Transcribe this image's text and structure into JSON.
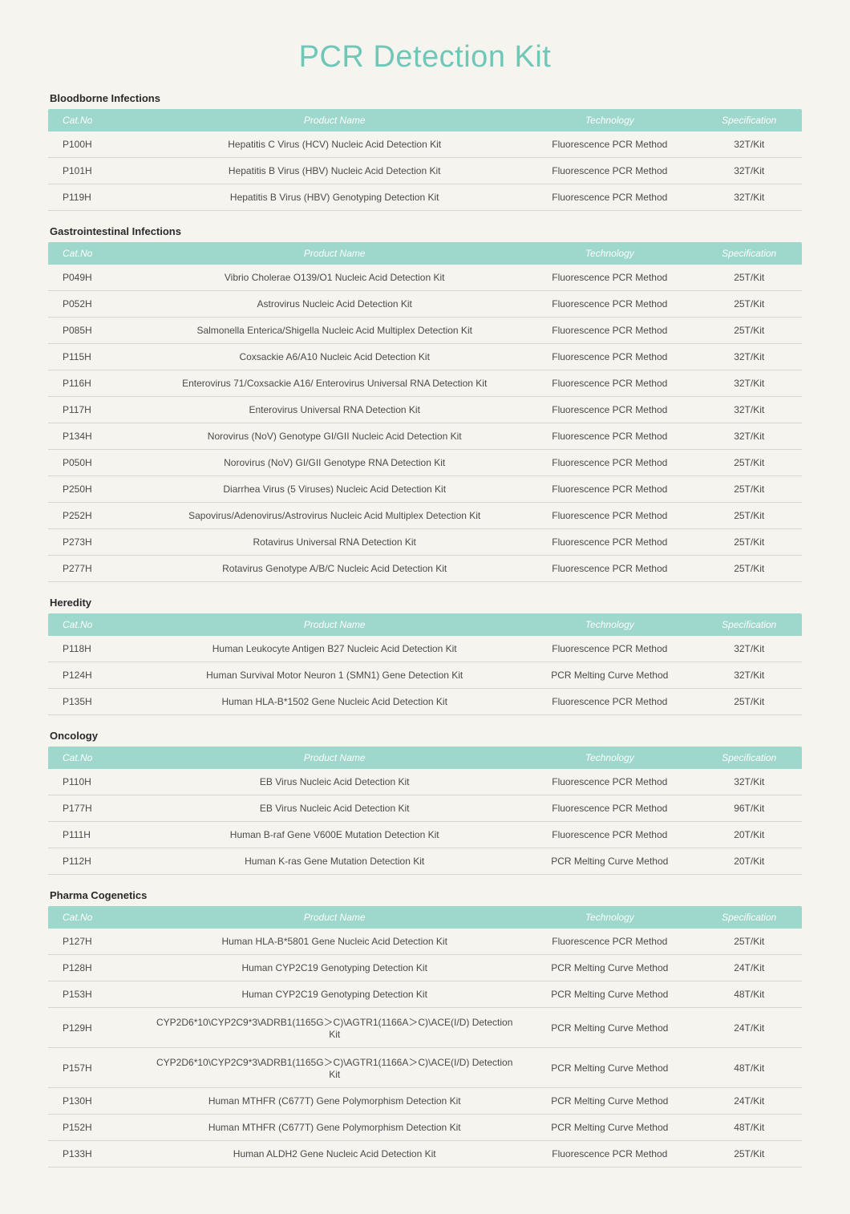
{
  "title": "PCR Detection Kit",
  "styling": {
    "title_color": "#6fc7b8",
    "title_fontsize": 38,
    "header_bg": "#9ed7cb",
    "header_text_color": "#ffffff",
    "body_bg": "#f6f4ef",
    "row_border_color": "#d9d6cf",
    "body_text_color": "#4a4a4a",
    "section_title_fontsize": 13,
    "body_fontsize": 12
  },
  "columns": [
    "Cat.No",
    "Product Name",
    "Technology",
    "Specification"
  ],
  "sections": [
    {
      "title": "Bloodborne Infections",
      "rows": [
        [
          "P100H",
          "Hepatitis C Virus (HCV) Nucleic Acid Detection Kit",
          "Fluorescence PCR Method",
          "32T/Kit"
        ],
        [
          "P101H",
          "Hepatitis B Virus (HBV) Nucleic Acid Detection Kit",
          "Fluorescence PCR Method",
          "32T/Kit"
        ],
        [
          "P119H",
          "Hepatitis B Virus (HBV) Genotyping Detection Kit",
          "Fluorescence PCR Method",
          "32T/Kit"
        ]
      ]
    },
    {
      "title": "Gastrointestinal Infections",
      "rows": [
        [
          "P049H",
          "Vibrio Cholerae O139/O1 Nucleic Acid Detection Kit",
          "Fluorescence PCR Method",
          "25T/Kit"
        ],
        [
          "P052H",
          "Astrovirus Nucleic Acid Detection Kit",
          "Fluorescence PCR Method",
          "25T/Kit"
        ],
        [
          "P085H",
          "Salmonella Enterica/Shigella Nucleic Acid Multiplex Detection Kit",
          "Fluorescence PCR Method",
          "25T/Kit"
        ],
        [
          "P115H",
          "Coxsackie A6/A10 Nucleic Acid Detection Kit",
          "Fluorescence PCR Method",
          "32T/Kit"
        ],
        [
          "P116H",
          "Enterovirus 71/Coxsackie A16/ Enterovirus Universal RNA Detection Kit",
          "Fluorescence PCR Method",
          "32T/Kit"
        ],
        [
          "P117H",
          "Enterovirus Universal RNA Detection Kit",
          "Fluorescence PCR Method",
          "32T/Kit"
        ],
        [
          "P134H",
          "Norovirus (NoV) Genotype GI/GII Nucleic Acid Detection Kit",
          "Fluorescence PCR Method",
          "32T/Kit"
        ],
        [
          "P050H",
          "Norovirus (NoV) GI/GII Genotype RNA Detection Kit",
          "Fluorescence PCR Method",
          "25T/Kit"
        ],
        [
          "P250H",
          "Diarrhea Virus (5 Viruses) Nucleic Acid Detection Kit",
          "Fluorescence PCR Method",
          "25T/Kit"
        ],
        [
          "P252H",
          "Sapovirus/Adenovirus/Astrovirus Nucleic Acid Multiplex Detection Kit",
          "Fluorescence PCR Method",
          "25T/Kit"
        ],
        [
          "P273H",
          "Rotavirus Universal RNA Detection Kit",
          "Fluorescence PCR Method",
          "25T/Kit"
        ],
        [
          "P277H",
          "Rotavirus Genotype A/B/C Nucleic Acid Detection Kit",
          "Fluorescence PCR Method",
          "25T/Kit"
        ]
      ]
    },
    {
      "title": "Heredity",
      "rows": [
        [
          "P118H",
          "Human Leukocyte Antigen B27 Nucleic Acid Detection Kit",
          "Fluorescence PCR Method",
          "32T/Kit"
        ],
        [
          "P124H",
          "Human Survival Motor Neuron 1 (SMN1) Gene Detection Kit",
          "PCR Melting Curve Method",
          "32T/Kit"
        ],
        [
          "P135H",
          "Human HLA-B*1502 Gene Nucleic Acid Detection Kit",
          "Fluorescence PCR Method",
          "25T/Kit"
        ]
      ]
    },
    {
      "title": "Oncology",
      "rows": [
        [
          "P110H",
          "EB Virus Nucleic Acid Detection Kit",
          "Fluorescence PCR Method",
          "32T/Kit"
        ],
        [
          "P177H",
          "EB Virus Nucleic Acid Detection Kit",
          "Fluorescence PCR Method",
          "96T/Kit"
        ],
        [
          "P111H",
          "Human B-raf Gene V600E Mutation Detection Kit",
          "Fluorescence PCR Method",
          "20T/Kit"
        ],
        [
          "P112H",
          "Human K-ras Gene Mutation Detection Kit",
          "PCR Melting Curve Method",
          "20T/Kit"
        ]
      ]
    },
    {
      "title": "Pharma Cogenetics",
      "rows": [
        [
          "P127H",
          "Human HLA-B*5801 Gene Nucleic Acid Detection Kit",
          "Fluorescence PCR Method",
          "25T/Kit"
        ],
        [
          "P128H",
          "Human CYP2C19 Genotyping Detection Kit",
          "PCR Melting Curve Method",
          "24T/Kit"
        ],
        [
          "P153H",
          "Human CYP2C19 Genotyping Detection Kit",
          "PCR Melting Curve Method",
          "48T/Kit"
        ],
        [
          "P129H",
          "CYP2D6*10\\CYP2C9*3\\ADRB1(1165G＞C)\\AGTR1(1166A＞C)\\ACE(I/D) Detection Kit",
          "PCR Melting Curve Method",
          "24T/Kit"
        ],
        [
          "P157H",
          "CYP2D6*10\\CYP2C9*3\\ADRB1(1165G＞C)\\AGTR1(1166A＞C)\\ACE(I/D) Detection Kit",
          "PCR Melting Curve Method",
          "48T/Kit"
        ],
        [
          "P130H",
          "Human MTHFR (C677T) Gene Polymorphism Detection Kit",
          "PCR Melting Curve Method",
          "24T/Kit"
        ],
        [
          "P152H",
          "Human MTHFR (C677T) Gene Polymorphism Detection Kit",
          "PCR Melting Curve Method",
          "48T/Kit"
        ],
        [
          "P133H",
          "Human ALDH2 Gene Nucleic Acid Detection Kit",
          "Fluorescence PCR Method",
          "25T/Kit"
        ]
      ]
    }
  ]
}
